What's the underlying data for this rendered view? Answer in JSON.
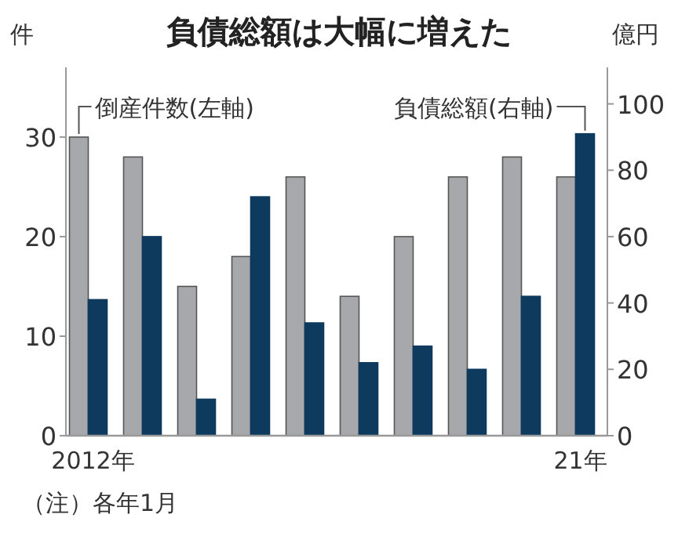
{
  "chart_data": {
    "type": "bar",
    "title": "負債総額は大幅に増えた",
    "ylabel": "件",
    "y2label": "億円",
    "categories": [
      "2012年",
      null,
      null,
      null,
      null,
      null,
      null,
      null,
      null,
      "21年"
    ],
    "series": [
      {
        "name": "倒産件数(左軸)",
        "color": "#a7a8ac",
        "values": [
          30,
          28,
          15,
          18,
          26,
          14,
          20,
          26,
          28,
          26
        ]
      },
      {
        "name": "負債総額(右軸)",
        "color": "#0e3a5e",
        "axis": "y2",
        "values": [
          41,
          60,
          11,
          72,
          34,
          22,
          27,
          20,
          42,
          91
        ]
      }
    ],
    "ylim": [
      0,
      37
    ],
    "yticks": [
      0,
      10,
      20,
      30
    ],
    "y2lim": [
      0,
      111
    ],
    "y2ticks": [
      0,
      20,
      40,
      60,
      80,
      100
    ],
    "annotations": [
      "（注）各年1月"
    ]
  }
}
